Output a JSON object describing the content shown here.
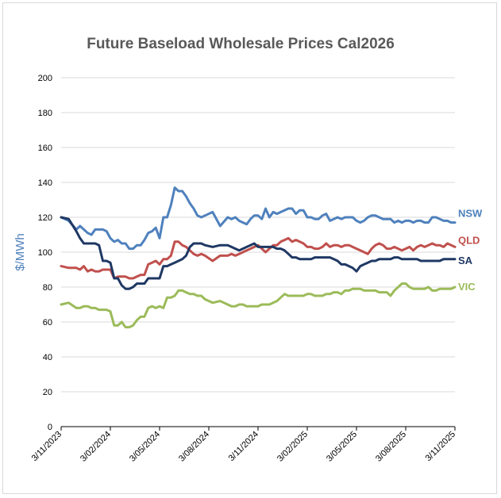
{
  "chart_data": {
    "type": "line",
    "title": "Future Baseload Wholesale Prices Cal2026",
    "xlabel": "",
    "ylabel": "$/MWh",
    "ylim": [
      0,
      200
    ],
    "yticks": [
      0,
      20,
      40,
      60,
      80,
      100,
      120,
      140,
      160,
      180,
      200
    ],
    "grid": "horizontal",
    "x_ticks": [
      "3/11/2023",
      "3/02/2024",
      "3/05/2024",
      "3/08/2024",
      "3/11/2024",
      "3/02/2025",
      "3/05/2025",
      "3/08/2025",
      "3/11/2025"
    ],
    "x_range_weeks": [
      0,
      104
    ],
    "series": [
      {
        "name": "NSW",
        "color": "#4f81bd",
        "x": [
          0,
          2,
          4,
          5,
          6,
          7,
          8,
          9,
          10,
          11,
          12,
          13,
          14,
          15,
          16,
          17,
          18,
          19,
          20,
          21,
          22,
          23,
          24,
          25,
          26,
          27,
          28,
          29,
          30,
          31,
          32,
          33,
          34,
          35,
          36,
          37,
          38,
          40,
          42,
          44,
          45,
          46,
          47,
          48,
          49,
          50,
          51,
          52,
          53,
          54,
          55,
          56,
          57,
          58,
          59,
          60,
          61,
          62,
          63,
          64,
          65,
          66,
          67,
          68,
          69,
          70,
          71,
          72,
          73,
          74,
          75,
          76,
          77,
          78,
          79,
          80,
          81,
          82,
          83,
          84,
          85,
          86,
          87,
          88,
          89,
          90,
          91,
          92,
          93,
          94,
          95,
          96,
          97,
          98,
          99,
          100,
          101,
          102,
          103,
          104
        ],
        "values": [
          120,
          118,
          113,
          115,
          113,
          111,
          110,
          113,
          113,
          113,
          112,
          108,
          106,
          107,
          105,
          105,
          102,
          102,
          104,
          104,
          107,
          111,
          112,
          114,
          108,
          120,
          120,
          127,
          137,
          135,
          135,
          132,
          128,
          125,
          121,
          120,
          121,
          123,
          115,
          120,
          119,
          120,
          118,
          117,
          116,
          119,
          121,
          121,
          119,
          125,
          120,
          123,
          122,
          123,
          124,
          125,
          125,
          122,
          124,
          124,
          120,
          120,
          119,
          119,
          121,
          122,
          118,
          119,
          120,
          119,
          120,
          120,
          120,
          118,
          117,
          118,
          120,
          121,
          121,
          120,
          119,
          119,
          119,
          117,
          118,
          117,
          118,
          118,
          117,
          118,
          118,
          117,
          117,
          120,
          120,
          119,
          118,
          118,
          117,
          117
        ]
      },
      {
        "name": "QLD",
        "color": "#c0504d",
        "x": [
          0,
          2,
          4,
          5,
          6,
          7,
          8,
          9,
          10,
          11,
          12,
          13,
          14,
          15,
          16,
          17,
          18,
          19,
          20,
          21,
          22,
          23,
          24,
          25,
          26,
          27,
          28,
          29,
          30,
          31,
          32,
          33,
          34,
          35,
          36,
          37,
          38,
          40,
          42,
          44,
          45,
          46,
          47,
          48,
          49,
          50,
          51,
          52,
          53,
          54,
          55,
          56,
          57,
          58,
          59,
          60,
          61,
          62,
          63,
          64,
          65,
          66,
          67,
          68,
          69,
          70,
          71,
          72,
          73,
          74,
          75,
          76,
          77,
          78,
          79,
          80,
          81,
          82,
          83,
          84,
          85,
          86,
          87,
          88,
          89,
          90,
          91,
          92,
          93,
          94,
          95,
          96,
          97,
          98,
          99,
          100,
          101,
          102,
          103,
          104
        ],
        "values": [
          92,
          91,
          91,
          90,
          92,
          89,
          90,
          89,
          89,
          90,
          90,
          90,
          85,
          86,
          86,
          86,
          85,
          85,
          86,
          87,
          87,
          93,
          94,
          95,
          93,
          96,
          96,
          98,
          106,
          106,
          104,
          103,
          101,
          99,
          98,
          99,
          98,
          95,
          98,
          98,
          99,
          98,
          99,
          100,
          101,
          102,
          103,
          104,
          102,
          100,
          102,
          104,
          104,
          106,
          107,
          108,
          106,
          107,
          106,
          105,
          103,
          103,
          102,
          102,
          103,
          105,
          103,
          104,
          104,
          103,
          104,
          104,
          103,
          102,
          101,
          100,
          99,
          102,
          104,
          105,
          104,
          102,
          102,
          103,
          102,
          101,
          102,
          103,
          101,
          103,
          104,
          103,
          104,
          105,
          104,
          104,
          103,
          105,
          104,
          103
        ]
      },
      {
        "name": "SA",
        "color": "#1f3864",
        "x": [
          0,
          2,
          4,
          5,
          6,
          7,
          8,
          9,
          10,
          11,
          12,
          13,
          14,
          15,
          16,
          17,
          18,
          19,
          20,
          21,
          22,
          23,
          24,
          25,
          26,
          27,
          28,
          29,
          30,
          31,
          32,
          33,
          34,
          35,
          36,
          37,
          38,
          40,
          42,
          44,
          45,
          46,
          47,
          48,
          49,
          50,
          51,
          52,
          53,
          54,
          55,
          56,
          57,
          58,
          59,
          60,
          61,
          62,
          63,
          64,
          65,
          66,
          67,
          68,
          69,
          70,
          71,
          72,
          73,
          74,
          75,
          76,
          77,
          78,
          79,
          80,
          81,
          82,
          83,
          84,
          85,
          86,
          87,
          88,
          89,
          90,
          91,
          92,
          93,
          94,
          95,
          96,
          97,
          98,
          99,
          100,
          101,
          102,
          103,
          104
        ],
        "values": [
          120,
          119,
          112,
          108,
          105,
          105,
          105,
          105,
          104,
          95,
          95,
          94,
          85,
          85,
          81,
          79,
          79,
          80,
          82,
          82,
          82,
          85,
          85,
          85,
          85,
          92,
          92,
          93,
          94,
          95,
          96,
          98,
          103,
          105,
          105,
          105,
          104,
          103,
          104,
          104,
          103,
          102,
          101,
          102,
          103,
          104,
          105,
          103,
          103,
          103,
          103,
          103,
          102,
          102,
          101,
          99,
          97,
          97,
          96,
          96,
          96,
          96,
          97,
          97,
          97,
          97,
          97,
          96,
          95,
          93,
          93,
          92,
          91,
          89,
          92,
          93,
          94,
          95,
          95,
          96,
          96,
          96,
          96,
          97,
          97,
          96,
          96,
          96,
          96,
          96,
          95,
          95,
          95,
          95,
          95,
          95,
          96,
          96,
          96,
          96
        ]
      },
      {
        "name": "VIC",
        "color": "#9bbb59",
        "x": [
          0,
          2,
          4,
          5,
          6,
          7,
          8,
          9,
          10,
          11,
          12,
          13,
          14,
          15,
          16,
          17,
          18,
          19,
          20,
          21,
          22,
          23,
          24,
          25,
          26,
          27,
          28,
          29,
          30,
          31,
          32,
          33,
          34,
          35,
          36,
          37,
          38,
          40,
          42,
          44,
          45,
          46,
          47,
          48,
          49,
          50,
          51,
          52,
          53,
          54,
          55,
          56,
          57,
          58,
          59,
          60,
          61,
          62,
          63,
          64,
          65,
          66,
          67,
          68,
          69,
          70,
          71,
          72,
          73,
          74,
          75,
          76,
          77,
          78,
          79,
          80,
          81,
          82,
          83,
          84,
          85,
          86,
          87,
          88,
          89,
          90,
          91,
          92,
          93,
          94,
          95,
          96,
          97,
          98,
          99,
          100,
          101,
          102,
          103,
          104
        ],
        "values": [
          70,
          71,
          68,
          68,
          69,
          69,
          68,
          68,
          67,
          67,
          67,
          66,
          58,
          58,
          60,
          57,
          57,
          58,
          61,
          63,
          63,
          68,
          69,
          68,
          69,
          68,
          74,
          74,
          75,
          78,
          78,
          77,
          76,
          76,
          75,
          75,
          73,
          71,
          72,
          70,
          69,
          69,
          70,
          70,
          69,
          69,
          69,
          69,
          70,
          70,
          70,
          71,
          72,
          74,
          76,
          75,
          75,
          75,
          75,
          75,
          76,
          76,
          75,
          75,
          75,
          76,
          76,
          77,
          77,
          76,
          78,
          78,
          79,
          79,
          79,
          78,
          78,
          78,
          78,
          77,
          77,
          77,
          75,
          78,
          80,
          82,
          82,
          80,
          79,
          79,
          79,
          79,
          80,
          78,
          78,
          79,
          79,
          79,
          79,
          80
        ]
      }
    ]
  }
}
